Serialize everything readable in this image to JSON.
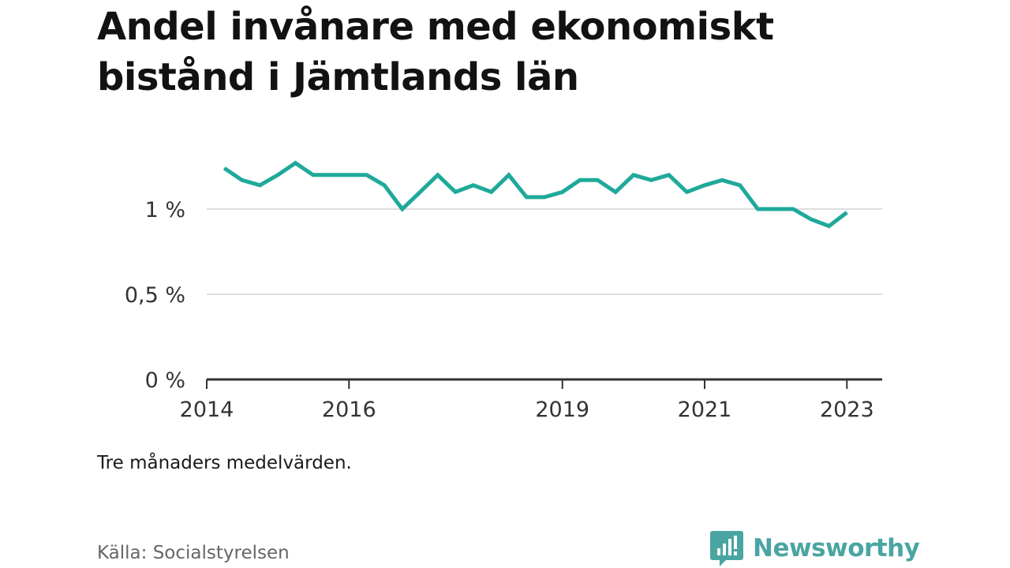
{
  "header": {
    "title": "Andel invånare med ekonomiskt bistånd i Jämtlands län"
  },
  "footer": {
    "note": "Tre månaders medelvärden.",
    "source": "Källa: Socialstyrelsen",
    "brand": "Newsworthy",
    "brand_icon": "bar-chart-speech-bubble-icon"
  },
  "colors": {
    "line": "#1fa99b",
    "grid": "#dddddd",
    "axis": "#333333",
    "brand": "#4aa5a2"
  },
  "chart_data": {
    "type": "line",
    "title": "Andel invånare med ekonomiskt bistånd i Jämtlands län",
    "xlabel": "",
    "ylabel": "",
    "x_type": "date",
    "xlim": [
      "2014-01-01",
      "2023-07-01"
    ],
    "ylim": [
      0,
      1.5
    ],
    "yticks": [
      {
        "value": 0,
        "label": "0 %"
      },
      {
        "value": 0.5,
        "label": "0,5 %"
      },
      {
        "value": 1,
        "label": "1 %"
      }
    ],
    "xticks": [
      {
        "date": "2014-01-01",
        "label": "2014"
      },
      {
        "date": "2016-01-01",
        "label": "2016"
      },
      {
        "date": "2019-01-01",
        "label": "2019"
      },
      {
        "date": "2021-01-01",
        "label": "2021"
      },
      {
        "date": "2023-01-01",
        "label": "2023"
      }
    ],
    "grid": true,
    "series": [
      {
        "x": [
          "2014-04-01",
          "2014-07-01",
          "2014-10-01",
          "2015-01-01",
          "2015-04-01",
          "2015-07-01",
          "2015-10-01",
          "2016-01-01",
          "2016-04-01",
          "2016-07-01",
          "2016-10-01",
          "2017-01-01",
          "2017-04-01",
          "2017-07-01",
          "2017-10-01",
          "2018-01-01",
          "2018-04-01",
          "2018-07-01",
          "2018-10-01",
          "2019-01-01",
          "2019-04-01",
          "2019-07-01",
          "2019-10-01",
          "2020-01-01",
          "2020-04-01",
          "2020-07-01",
          "2020-10-01",
          "2021-01-01",
          "2021-04-01",
          "2021-07-01",
          "2021-10-01",
          "2022-01-01",
          "2022-04-01",
          "2022-07-01",
          "2022-10-01",
          "2023-01-01"
        ],
        "values": [
          1.24,
          1.17,
          1.14,
          1.2,
          1.27,
          1.2,
          1.2,
          1.2,
          1.2,
          1.14,
          1.0,
          1.1,
          1.2,
          1.1,
          1.14,
          1.1,
          1.2,
          1.07,
          1.07,
          1.1,
          1.17,
          1.17,
          1.1,
          1.2,
          1.17,
          1.2,
          1.1,
          1.14,
          1.17,
          1.14,
          1.0,
          1.0,
          1.0,
          0.94,
          0.9,
          0.98
        ]
      }
    ]
  }
}
